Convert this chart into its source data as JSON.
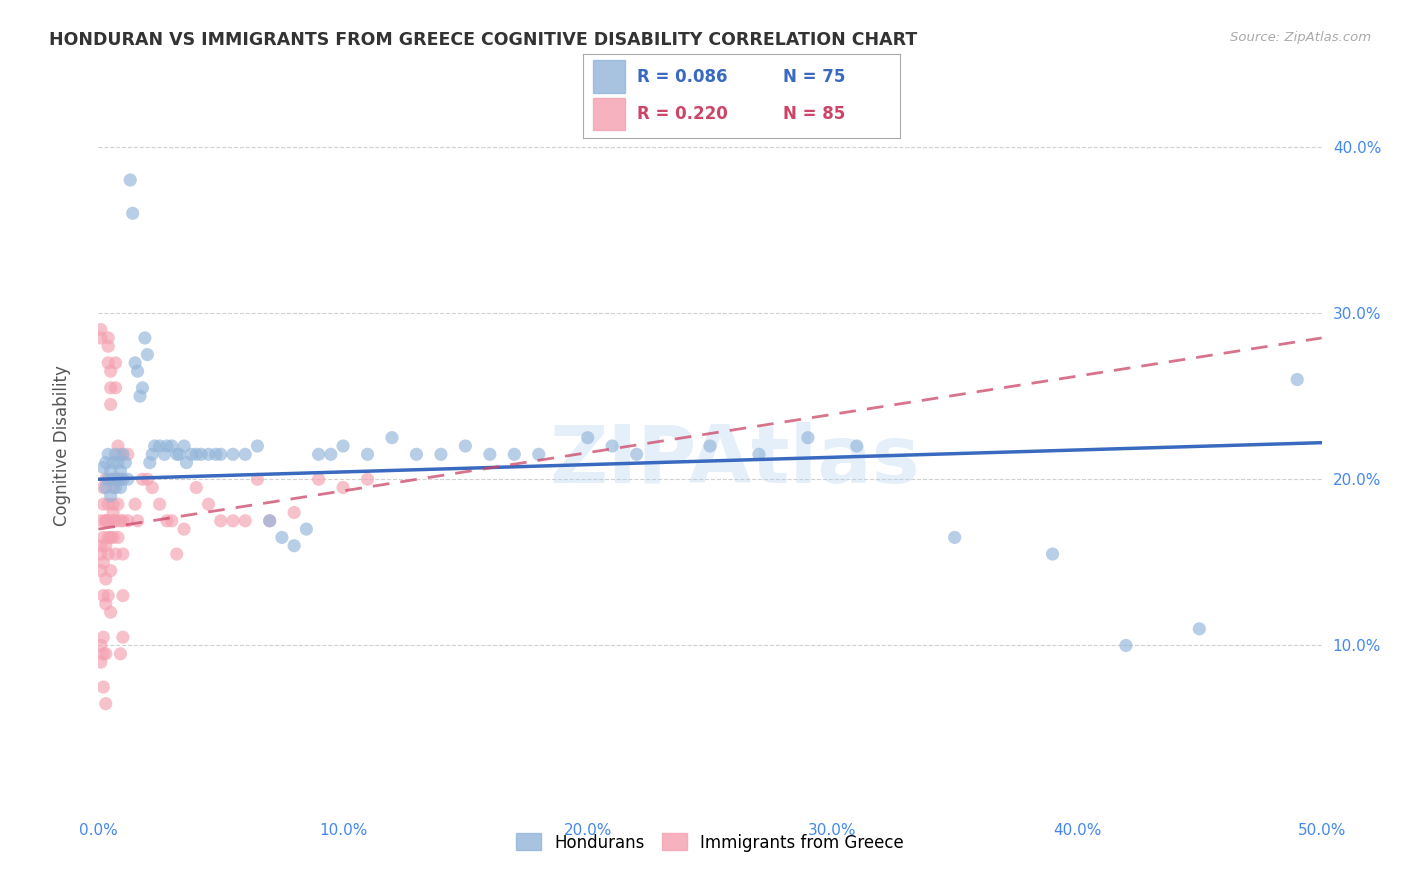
{
  "title": "HONDURAN VS IMMIGRANTS FROM GREECE COGNITIVE DISABILITY CORRELATION CHART",
  "source": "Source: ZipAtlas.com",
  "ylabel": "Cognitive Disability",
  "watermark": "ZIPAtlas",
  "xlim": [
    0.0,
    0.5
  ],
  "ylim": [
    0.0,
    0.44
  ],
  "xticks": [
    0.0,
    0.1,
    0.2,
    0.3,
    0.4,
    0.5
  ],
  "yticks": [
    0.1,
    0.2,
    0.3,
    0.4
  ],
  "blue_R": 0.086,
  "blue_N": 75,
  "pink_R": 0.22,
  "pink_N": 85,
  "blue_color": "#92B4D9",
  "pink_color": "#F4A0B0",
  "blue_line_color": "#3A6ABF",
  "pink_line_color": "#CC4466",
  "pink_line_dash": [
    6,
    4
  ],
  "grid_color": "#CCCCCC",
  "title_color": "#333333",
  "axis_color": "#4488EE",
  "legend_border_color": "#AAAAAA",
  "blue_scatter": [
    [
      0.002,
      0.207
    ],
    [
      0.003,
      0.195
    ],
    [
      0.003,
      0.21
    ],
    [
      0.004,
      0.2
    ],
    [
      0.004,
      0.215
    ],
    [
      0.005,
      0.19
    ],
    [
      0.005,
      0.205
    ],
    [
      0.006,
      0.2
    ],
    [
      0.006,
      0.21
    ],
    [
      0.007,
      0.195
    ],
    [
      0.007,
      0.215
    ],
    [
      0.008,
      0.2
    ],
    [
      0.008,
      0.21
    ],
    [
      0.009,
      0.205
    ],
    [
      0.009,
      0.195
    ],
    [
      0.01,
      0.215
    ],
    [
      0.01,
      0.2
    ],
    [
      0.011,
      0.21
    ],
    [
      0.012,
      0.2
    ],
    [
      0.013,
      0.38
    ],
    [
      0.014,
      0.36
    ],
    [
      0.015,
      0.27
    ],
    [
      0.016,
      0.265
    ],
    [
      0.017,
      0.25
    ],
    [
      0.018,
      0.255
    ],
    [
      0.019,
      0.285
    ],
    [
      0.02,
      0.275
    ],
    [
      0.021,
      0.21
    ],
    [
      0.022,
      0.215
    ],
    [
      0.023,
      0.22
    ],
    [
      0.025,
      0.22
    ],
    [
      0.027,
      0.215
    ],
    [
      0.028,
      0.22
    ],
    [
      0.03,
      0.22
    ],
    [
      0.032,
      0.215
    ],
    [
      0.033,
      0.215
    ],
    [
      0.035,
      0.22
    ],
    [
      0.036,
      0.21
    ],
    [
      0.038,
      0.215
    ],
    [
      0.04,
      0.215
    ],
    [
      0.042,
      0.215
    ],
    [
      0.045,
      0.215
    ],
    [
      0.048,
      0.215
    ],
    [
      0.05,
      0.215
    ],
    [
      0.055,
      0.215
    ],
    [
      0.06,
      0.215
    ],
    [
      0.065,
      0.22
    ],
    [
      0.07,
      0.175
    ],
    [
      0.075,
      0.165
    ],
    [
      0.08,
      0.16
    ],
    [
      0.085,
      0.17
    ],
    [
      0.09,
      0.215
    ],
    [
      0.095,
      0.215
    ],
    [
      0.1,
      0.22
    ],
    [
      0.11,
      0.215
    ],
    [
      0.12,
      0.225
    ],
    [
      0.13,
      0.215
    ],
    [
      0.14,
      0.215
    ],
    [
      0.15,
      0.22
    ],
    [
      0.16,
      0.215
    ],
    [
      0.17,
      0.215
    ],
    [
      0.18,
      0.215
    ],
    [
      0.2,
      0.225
    ],
    [
      0.21,
      0.22
    ],
    [
      0.22,
      0.215
    ],
    [
      0.25,
      0.22
    ],
    [
      0.27,
      0.215
    ],
    [
      0.29,
      0.225
    ],
    [
      0.31,
      0.22
    ],
    [
      0.35,
      0.165
    ],
    [
      0.39,
      0.155
    ],
    [
      0.42,
      0.1
    ],
    [
      0.45,
      0.11
    ],
    [
      0.49,
      0.26
    ]
  ],
  "pink_scatter": [
    [
      0.001,
      0.155
    ],
    [
      0.001,
      0.1
    ],
    [
      0.001,
      0.145
    ],
    [
      0.001,
      0.16
    ],
    [
      0.001,
      0.175
    ],
    [
      0.001,
      0.09
    ],
    [
      0.001,
      0.285
    ],
    [
      0.001,
      0.29
    ],
    [
      0.002,
      0.195
    ],
    [
      0.002,
      0.185
    ],
    [
      0.002,
      0.165
    ],
    [
      0.002,
      0.15
    ],
    [
      0.002,
      0.13
    ],
    [
      0.002,
      0.105
    ],
    [
      0.002,
      0.075
    ],
    [
      0.002,
      0.095
    ],
    [
      0.003,
      0.2
    ],
    [
      0.003,
      0.175
    ],
    [
      0.003,
      0.16
    ],
    [
      0.003,
      0.14
    ],
    [
      0.003,
      0.125
    ],
    [
      0.003,
      0.095
    ],
    [
      0.003,
      0.065
    ],
    [
      0.003,
      0.175
    ],
    [
      0.004,
      0.185
    ],
    [
      0.004,
      0.175
    ],
    [
      0.004,
      0.165
    ],
    [
      0.004,
      0.155
    ],
    [
      0.004,
      0.285
    ],
    [
      0.004,
      0.28
    ],
    [
      0.004,
      0.27
    ],
    [
      0.004,
      0.13
    ],
    [
      0.005,
      0.265
    ],
    [
      0.005,
      0.255
    ],
    [
      0.005,
      0.245
    ],
    [
      0.005,
      0.2
    ],
    [
      0.005,
      0.165
    ],
    [
      0.005,
      0.145
    ],
    [
      0.005,
      0.12
    ],
    [
      0.006,
      0.195
    ],
    [
      0.006,
      0.185
    ],
    [
      0.006,
      0.18
    ],
    [
      0.006,
      0.175
    ],
    [
      0.006,
      0.165
    ],
    [
      0.007,
      0.27
    ],
    [
      0.007,
      0.255
    ],
    [
      0.007,
      0.2
    ],
    [
      0.007,
      0.175
    ],
    [
      0.007,
      0.155
    ],
    [
      0.008,
      0.22
    ],
    [
      0.008,
      0.2
    ],
    [
      0.008,
      0.185
    ],
    [
      0.008,
      0.165
    ],
    [
      0.009,
      0.215
    ],
    [
      0.009,
      0.2
    ],
    [
      0.009,
      0.175
    ],
    [
      0.009,
      0.095
    ],
    [
      0.01,
      0.175
    ],
    [
      0.01,
      0.155
    ],
    [
      0.01,
      0.13
    ],
    [
      0.01,
      0.105
    ],
    [
      0.012,
      0.215
    ],
    [
      0.012,
      0.175
    ],
    [
      0.015,
      0.185
    ],
    [
      0.016,
      0.175
    ],
    [
      0.018,
      0.2
    ],
    [
      0.02,
      0.2
    ],
    [
      0.022,
      0.195
    ],
    [
      0.025,
      0.185
    ],
    [
      0.028,
      0.175
    ],
    [
      0.03,
      0.175
    ],
    [
      0.032,
      0.155
    ],
    [
      0.035,
      0.17
    ],
    [
      0.04,
      0.195
    ],
    [
      0.045,
      0.185
    ],
    [
      0.05,
      0.175
    ],
    [
      0.055,
      0.175
    ],
    [
      0.06,
      0.175
    ],
    [
      0.065,
      0.2
    ],
    [
      0.07,
      0.175
    ],
    [
      0.08,
      0.18
    ],
    [
      0.09,
      0.2
    ],
    [
      0.1,
      0.195
    ],
    [
      0.11,
      0.2
    ]
  ]
}
